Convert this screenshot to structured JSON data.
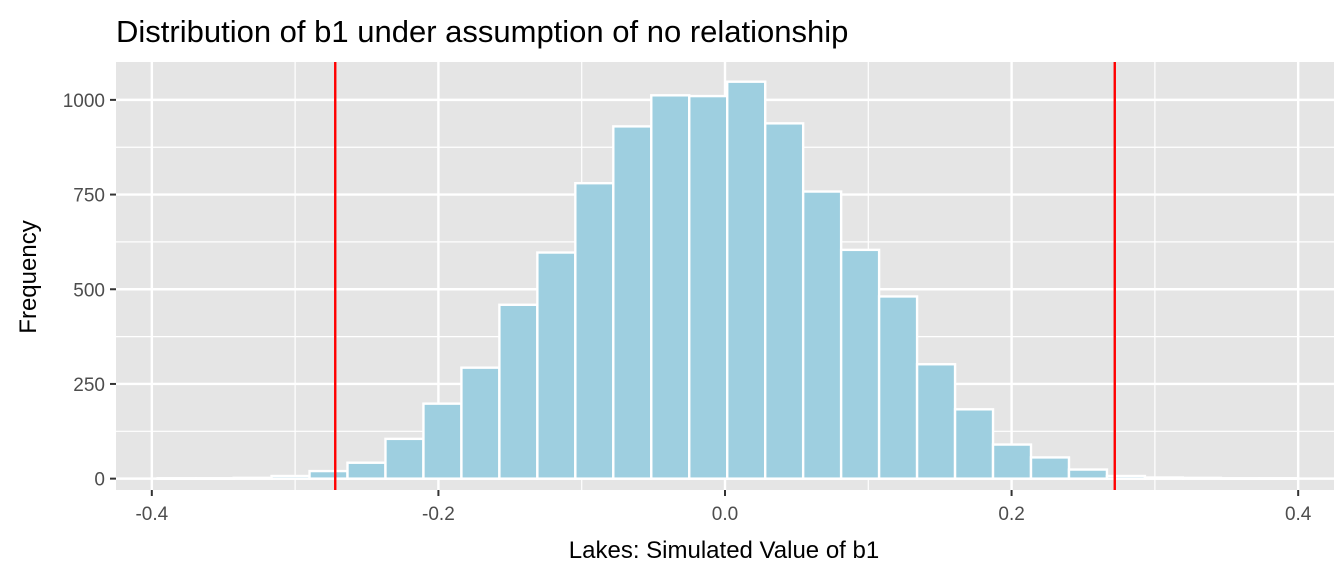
{
  "chart_data": {
    "type": "bar",
    "title": "Distribution of b1 under assumption of no relationship",
    "xlabel": "Lakes: Simulated Value of b1",
    "ylabel": "Frequency",
    "xlim": [
      -0.425,
      0.425
    ],
    "ylim": [
      -30,
      1100
    ],
    "x_ticks": [
      -0.4,
      -0.2,
      0.0,
      0.2,
      0.4
    ],
    "x_tick_labels": [
      "-0.4",
      "-0.2",
      "0.0",
      "0.2",
      "0.4"
    ],
    "y_ticks": [
      0,
      250,
      500,
      750,
      1000
    ],
    "y_tick_labels": [
      "0",
      "250",
      "500",
      "750",
      "1000"
    ],
    "grid": true,
    "bin_width": 0.0265,
    "bins": [
      {
        "x": -0.3827,
        "count": 1
      },
      {
        "x": -0.3562,
        "count": 1
      },
      {
        "x": -0.3297,
        "count": 2
      },
      {
        "x": -0.3032,
        "count": 7
      },
      {
        "x": -0.2767,
        "count": 20
      },
      {
        "x": -0.2502,
        "count": 42
      },
      {
        "x": -0.2237,
        "count": 105
      },
      {
        "x": -0.1972,
        "count": 198
      },
      {
        "x": -0.1707,
        "count": 293
      },
      {
        "x": -0.1442,
        "count": 459
      },
      {
        "x": -0.1177,
        "count": 597
      },
      {
        "x": -0.0912,
        "count": 780
      },
      {
        "x": -0.0647,
        "count": 930
      },
      {
        "x": -0.0382,
        "count": 1012
      },
      {
        "x": -0.0117,
        "count": 1010
      },
      {
        "x": 0.0148,
        "count": 1048
      },
      {
        "x": 0.0413,
        "count": 938
      },
      {
        "x": 0.0678,
        "count": 758
      },
      {
        "x": 0.0943,
        "count": 604
      },
      {
        "x": 0.1208,
        "count": 481
      },
      {
        "x": 0.1473,
        "count": 302
      },
      {
        "x": 0.1738,
        "count": 183
      },
      {
        "x": 0.2003,
        "count": 90
      },
      {
        "x": 0.2268,
        "count": 56
      },
      {
        "x": 0.2533,
        "count": 24
      },
      {
        "x": 0.2798,
        "count": 7
      },
      {
        "x": 0.3063,
        "count": 3
      },
      {
        "x": 0.3328,
        "count": 2
      },
      {
        "x": 0.3593,
        "count": 1
      },
      {
        "x": 0.3858,
        "count": 1
      }
    ],
    "vlines": [
      -0.272,
      0.272
    ],
    "colors": {
      "bar_fill": "#9ecfe0",
      "bar_stroke": "#ffffff",
      "panel_bg": "#e5e5e5",
      "grid": "#ffffff",
      "vline": "#ff0000"
    }
  }
}
